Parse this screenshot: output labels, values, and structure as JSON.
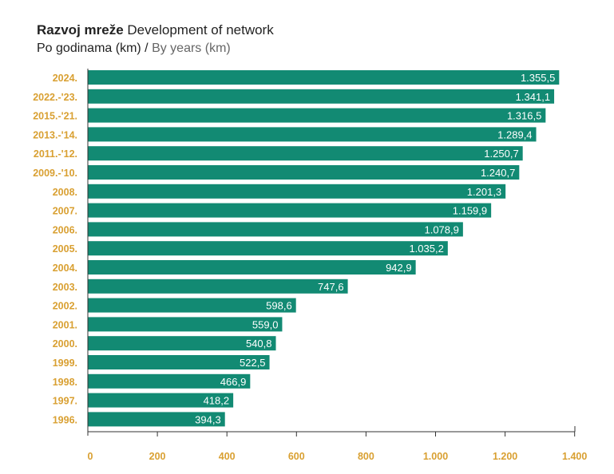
{
  "chart_data": {
    "type": "bar",
    "orientation": "horizontal",
    "title_bold": "Razvoj mreže",
    "title_rest": "Development of network",
    "subtitle_main": "Po godinama (km) /",
    "subtitle_light": "By years (km)",
    "categories": [
      "2024.",
      "2022.-'23.",
      "2015.-'21.",
      "2013.-'14.",
      "2011.-'12.",
      "2009.-'10.",
      "2008.",
      "2007.",
      "2006.",
      "2005.",
      "2004.",
      "2003.",
      "2002.",
      "2001.",
      "2000.",
      "1999.",
      "1998.",
      "1997.",
      "1996."
    ],
    "values": [
      1355.5,
      1341.1,
      1316.5,
      1289.4,
      1250.7,
      1240.7,
      1201.3,
      1159.9,
      1078.9,
      1035.2,
      942.9,
      747.6,
      598.6,
      559.0,
      540.8,
      522.5,
      466.9,
      418.2,
      394.3
    ],
    "value_labels": [
      "1.355,5",
      "1.341,1",
      "1.316,5",
      "1.289,4",
      "1.250,7",
      "1.240,7",
      "1.201,3",
      "1.159,9",
      "1.078,9",
      "1.035,2",
      "942,9",
      "747,6",
      "598,6",
      "559,0",
      "540,8",
      "522,5",
      "466,9",
      "418,2",
      "394,3"
    ],
    "xticks": [
      0,
      200,
      400,
      600,
      800,
      1000,
      1200,
      1400
    ],
    "xtick_labels": [
      "0",
      "200",
      "400",
      "600",
      "800",
      "1.000",
      "1.200",
      "1.400"
    ],
    "bar_color": "#128a73",
    "label_color": "#d9a032"
  }
}
